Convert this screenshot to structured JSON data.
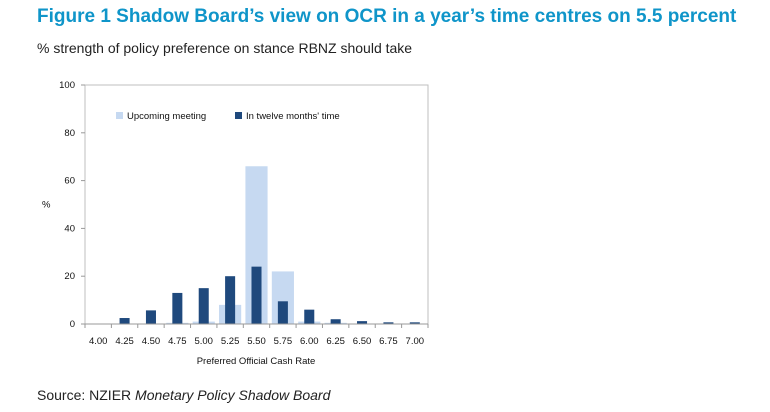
{
  "title": "Figure 1 Shadow Board’s view on OCR in a year’s time centres on 5.5 percent",
  "subtitle": "% strength of policy preference on stance RBNZ should take",
  "source_prefix": "Source: NZIER ",
  "source_italic": "Monetary Policy Shadow Board",
  "colors": {
    "upcoming": "#c6d9f1",
    "twelve": "#1f497d"
  },
  "chart_data": {
    "type": "bar",
    "title": "",
    "xlabel": "Preferred  Official Cash Rate",
    "ylabel": "%",
    "ylim": [
      0,
      100
    ],
    "yticks": [
      0,
      20,
      40,
      60,
      80,
      100
    ],
    "categories": [
      "4.00",
      "4.25",
      "4.50",
      "4.75",
      "5.00",
      "5.25",
      "5.50",
      "5.75",
      "6.00",
      "6.25",
      "6.50",
      "6.75",
      "7.00"
    ],
    "series": [
      {
        "name": "Upcoming meeting",
        "values": [
          0,
          0,
          0,
          0.5,
          1,
          8,
          66,
          22,
          1,
          0.5,
          0,
          0,
          0
        ]
      },
      {
        "name": "In twelve months' time",
        "values": [
          0,
          2.5,
          5.7,
          13,
          15,
          20,
          24,
          9.5,
          6,
          2,
          1.2,
          0.7,
          0.7
        ]
      }
    ],
    "legend": "top-left"
  }
}
